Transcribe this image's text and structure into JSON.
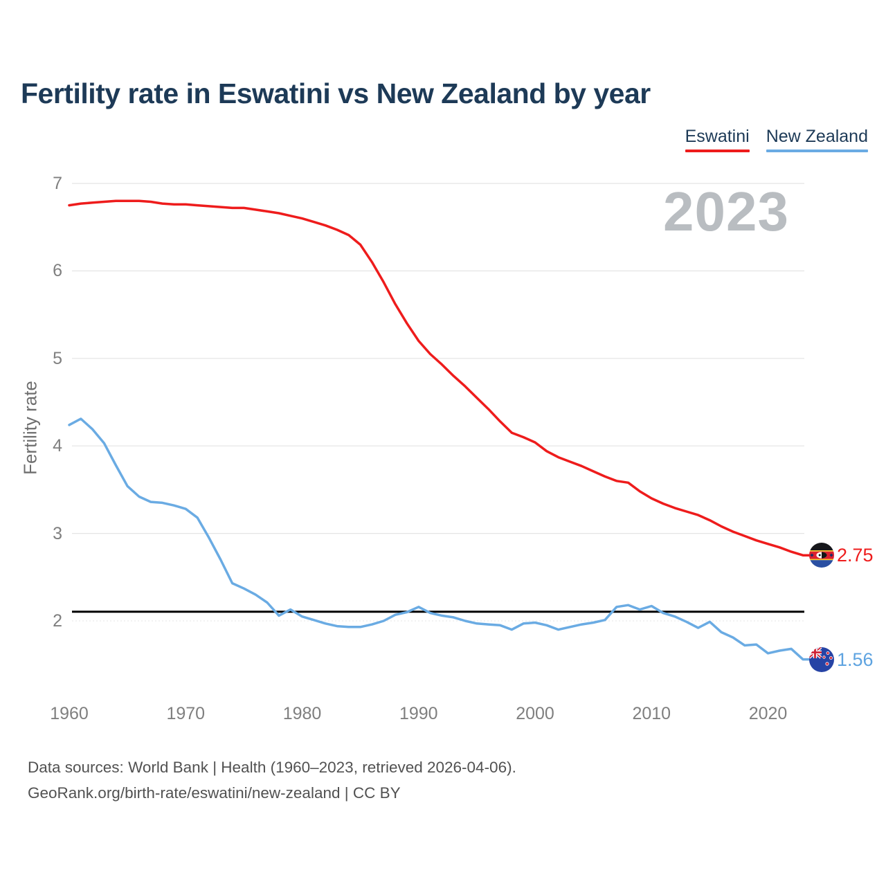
{
  "title": "Fertility rate in Eswatini vs New Zealand by year",
  "watermark": "2023",
  "legend": [
    {
      "label": "Eswatini",
      "color": "#ee1c1c"
    },
    {
      "label": "New Zealand",
      "color": "#6aabe3"
    }
  ],
  "y_axis": {
    "label": "Fertility rate",
    "ticks": [
      2,
      3,
      4,
      5,
      6,
      7
    ]
  },
  "x_axis": {
    "ticks": [
      1960,
      1970,
      1980,
      1990,
      2000,
      2010,
      2020
    ]
  },
  "end_labels": [
    {
      "series": "Eswatini",
      "value": "2.75",
      "color": "#ee1c1c",
      "icon": "eswatini-flag-icon"
    },
    {
      "series": "New Zealand",
      "value": "1.56",
      "color": "#5ea3e0",
      "icon": "new-zealand-flag-icon"
    }
  ],
  "footer": {
    "line1": "Data sources: World Bank | Health (1960–2023, retrieved 2026-04-06).",
    "line2": "GeoRank.org/birth-rate/eswatini/new-zealand | CC BY"
  },
  "chart_data": {
    "type": "line",
    "title": "Fertility rate in Eswatini vs New Zealand by year",
    "xlabel": "",
    "ylabel": "Fertility rate",
    "xlim": [
      1960,
      2023
    ],
    "ylim": [
      1.45,
      7.15
    ],
    "grid": "horizontal",
    "legend_position": "top-right",
    "reference_line": 2.105,
    "years": [
      1960,
      1961,
      1962,
      1963,
      1964,
      1965,
      1966,
      1967,
      1968,
      1969,
      1970,
      1971,
      1972,
      1973,
      1974,
      1975,
      1976,
      1977,
      1978,
      1979,
      1980,
      1981,
      1982,
      1983,
      1984,
      1985,
      1986,
      1987,
      1988,
      1989,
      1990,
      1991,
      1992,
      1993,
      1994,
      1995,
      1996,
      1997,
      1998,
      1999,
      2000,
      2001,
      2002,
      2003,
      2004,
      2005,
      2006,
      2007,
      2008,
      2009,
      2010,
      2011,
      2012,
      2013,
      2014,
      2015,
      2016,
      2017,
      2018,
      2019,
      2020,
      2021,
      2022,
      2023
    ],
    "series": [
      {
        "name": "Eswatini",
        "color": "#ee1c1c",
        "values": [
          6.75,
          6.77,
          6.78,
          6.79,
          6.8,
          6.8,
          6.8,
          6.79,
          6.77,
          6.76,
          6.76,
          6.75,
          6.74,
          6.73,
          6.72,
          6.72,
          6.7,
          6.68,
          6.66,
          6.63,
          6.6,
          6.56,
          6.52,
          6.47,
          6.41,
          6.3,
          6.1,
          5.87,
          5.62,
          5.4,
          5.2,
          5.05,
          4.93,
          4.8,
          4.68,
          4.55,
          4.42,
          4.28,
          4.15,
          4.1,
          4.04,
          3.94,
          3.87,
          3.82,
          3.77,
          3.71,
          3.65,
          3.6,
          3.58,
          3.48,
          3.4,
          3.34,
          3.29,
          3.25,
          3.21,
          3.15,
          3.08,
          3.02,
          2.97,
          2.92,
          2.88,
          2.84,
          2.79,
          2.75
        ]
      },
      {
        "name": "New Zealand",
        "color": "#6aabe3",
        "values": [
          4.24,
          4.31,
          4.19,
          4.03,
          3.78,
          3.54,
          3.42,
          3.36,
          3.35,
          3.32,
          3.28,
          3.18,
          2.95,
          2.7,
          2.43,
          2.37,
          2.3,
          2.21,
          2.06,
          2.13,
          2.05,
          2.01,
          1.97,
          1.94,
          1.93,
          1.93,
          1.96,
          2.0,
          2.07,
          2.1,
          2.16,
          2.09,
          2.06,
          2.04,
          2.0,
          1.97,
          1.96,
          1.95,
          1.9,
          1.97,
          1.98,
          1.95,
          1.9,
          1.93,
          1.96,
          1.98,
          2.01,
          2.16,
          2.18,
          2.13,
          2.17,
          2.09,
          2.05,
          1.99,
          1.92,
          1.99,
          1.87,
          1.81,
          1.72,
          1.73,
          1.63,
          1.66,
          1.68,
          1.56
        ]
      }
    ]
  }
}
